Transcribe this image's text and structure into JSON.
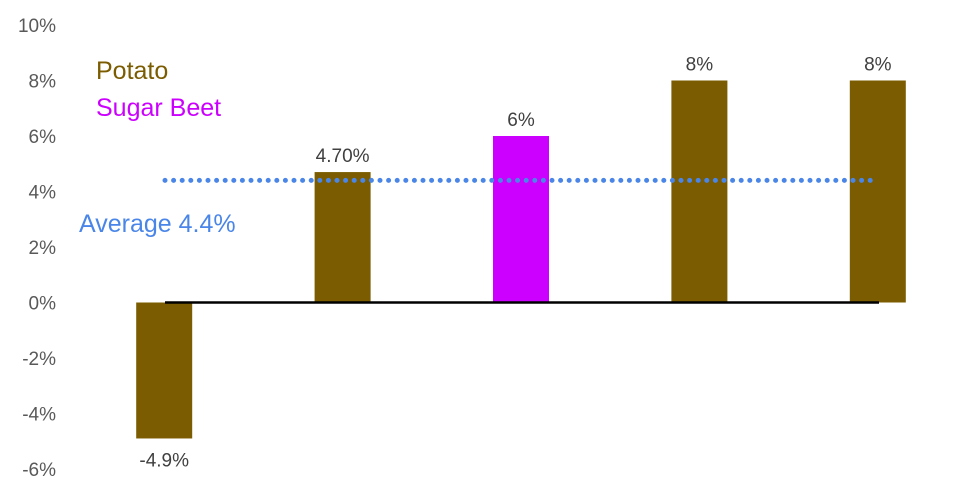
{
  "chart_data": {
    "type": "bar",
    "categories": [
      "",
      "",
      "",
      "",
      ""
    ],
    "values": [
      -4.9,
      4.7,
      6,
      8,
      8
    ],
    "crop": [
      "Potato",
      "Potato",
      "Sugar Beet",
      "Potato",
      "Potato"
    ],
    "data_labels": [
      "-4.9%",
      "4.70%",
      "6%",
      "8%",
      "8%"
    ],
    "ylim": [
      -6,
      10
    ],
    "yticks": [
      -6,
      -4,
      -2,
      0,
      2,
      4,
      6,
      8,
      10
    ],
    "ytick_labels": [
      "-6%",
      "-4%",
      "-2%",
      "0%",
      "2%",
      "4%",
      "6%",
      "8%",
      "10%"
    ],
    "average": {
      "value": 4.4,
      "label": "Average 4.4%",
      "color": "#4A86E8",
      "style": "dotted"
    },
    "legend": {
      "placement": "top-left",
      "entries": [
        {
          "name": "Potato",
          "color": "#7B5C00"
        },
        {
          "name": "Sugar Beet",
          "color": "#CC00FF"
        }
      ]
    },
    "grid": false,
    "zero_line_color": "#000000"
  }
}
